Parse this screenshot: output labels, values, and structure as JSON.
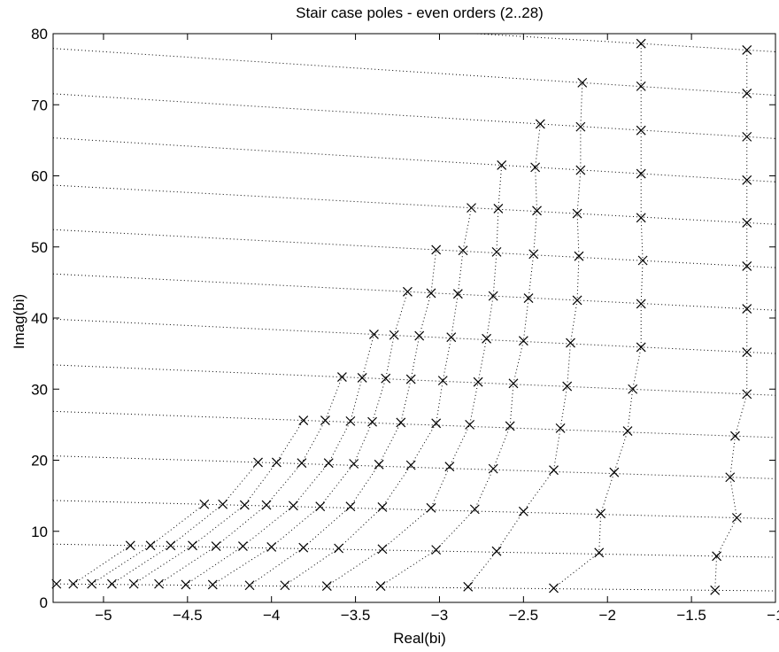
{
  "chart_data": {
    "type": "scatter",
    "title": "Stair case poles - even orders (2..28)",
    "xlabel": "Real(bi)",
    "ylabel": "Imag(bi)",
    "xlim": [
      -5.3,
      -1
    ],
    "ylim": [
      0,
      80
    ],
    "x_ticks": [
      -5,
      -4.5,
      -4,
      -3.5,
      -3,
      -2.5,
      -2,
      -1.5,
      -1
    ],
    "y_ticks": [
      0,
      10,
      20,
      30,
      40,
      50,
      60,
      70,
      80
    ],
    "x_tick_labels": [
      "−5",
      "−4.5",
      "−4",
      "−3.5",
      "−3",
      "−2.5",
      "−2",
      "−1.5",
      "−1"
    ],
    "y_tick_labels": [
      "0",
      "10",
      "20",
      "30",
      "40",
      "50",
      "60",
      "70",
      "80"
    ],
    "grid": false,
    "marker": "x",
    "marker_color": "#000000",
    "guide_line_style": "dotted",
    "series": [
      {
        "name": "",
        "points": [
          [
            -5.28,
            2.6
          ],
          [
            -5.18,
            2.6
          ],
          [
            -5.07,
            2.6
          ],
          [
            -4.95,
            2.6
          ],
          [
            -4.82,
            2.6
          ],
          [
            -4.67,
            2.6
          ],
          [
            -4.51,
            2.5
          ],
          [
            -4.35,
            2.5
          ],
          [
            -4.13,
            2.4
          ],
          [
            -3.92,
            2.4
          ],
          [
            -3.67,
            2.3
          ],
          [
            -3.35,
            2.3
          ],
          [
            -2.83,
            2.2
          ],
          [
            -2.32,
            2.0
          ],
          [
            -1.36,
            1.7
          ]
        ]
      },
      {
        "name": "",
        "points": [
          [
            -4.84,
            8.0
          ],
          [
            -4.72,
            8.0
          ],
          [
            -4.6,
            8.0
          ],
          [
            -4.47,
            8.0
          ],
          [
            -4.33,
            7.9
          ],
          [
            -4.17,
            7.9
          ],
          [
            -4.0,
            7.8
          ],
          [
            -3.81,
            7.7
          ],
          [
            -3.6,
            7.6
          ],
          [
            -3.34,
            7.5
          ],
          [
            -3.02,
            7.4
          ],
          [
            -2.66,
            7.2
          ],
          [
            -2.05,
            7.0
          ],
          [
            -1.35,
            6.5
          ]
        ]
      },
      {
        "name": "",
        "points": [
          [
            -4.4,
            13.8
          ],
          [
            -4.29,
            13.8
          ],
          [
            -4.16,
            13.7
          ],
          [
            -4.03,
            13.7
          ],
          [
            -3.87,
            13.6
          ],
          [
            -3.71,
            13.5
          ],
          [
            -3.53,
            13.5
          ],
          [
            -3.34,
            13.4
          ],
          [
            -3.05,
            13.3
          ],
          [
            -2.79,
            13.1
          ],
          [
            -2.5,
            12.8
          ],
          [
            -2.04,
            12.5
          ],
          [
            -1.23,
            11.9
          ]
        ]
      },
      {
        "name": "",
        "points": [
          [
            -4.08,
            19.7
          ],
          [
            -3.97,
            19.7
          ],
          [
            -3.82,
            19.6
          ],
          [
            -3.66,
            19.6
          ],
          [
            -3.51,
            19.5
          ],
          [
            -3.36,
            19.4
          ],
          [
            -3.17,
            19.3
          ],
          [
            -2.94,
            19.1
          ],
          [
            -2.68,
            18.8
          ],
          [
            -2.32,
            18.6
          ],
          [
            -1.96,
            18.3
          ],
          [
            -1.27,
            17.6
          ]
        ]
      },
      {
        "name": "",
        "points": [
          [
            -3.81,
            25.6
          ],
          [
            -3.68,
            25.6
          ],
          [
            -3.53,
            25.5
          ],
          [
            -3.4,
            25.4
          ],
          [
            -3.23,
            25.3
          ],
          [
            -3.02,
            25.2
          ],
          [
            -2.82,
            25.0
          ],
          [
            -2.58,
            24.8
          ],
          [
            -2.28,
            24.5
          ],
          [
            -1.88,
            24.1
          ],
          [
            -1.24,
            23.4
          ]
        ]
      },
      {
        "name": "",
        "points": [
          [
            -3.58,
            31.7
          ],
          [
            -3.46,
            31.6
          ],
          [
            -3.32,
            31.5
          ],
          [
            -3.17,
            31.4
          ],
          [
            -2.98,
            31.2
          ],
          [
            -2.77,
            31.0
          ],
          [
            -2.56,
            30.8
          ],
          [
            -2.24,
            30.4
          ],
          [
            -1.85,
            30.0
          ],
          [
            -1.17,
            29.3
          ]
        ]
      },
      {
        "name": "",
        "points": [
          [
            -3.39,
            37.7
          ],
          [
            -3.27,
            37.6
          ],
          [
            -3.12,
            37.5
          ],
          [
            -2.93,
            37.3
          ],
          [
            -2.72,
            37.1
          ],
          [
            -2.5,
            36.8
          ],
          [
            -2.22,
            36.5
          ],
          [
            -1.8,
            35.9
          ],
          [
            -1.17,
            35.2
          ]
        ]
      },
      {
        "name": "",
        "points": [
          [
            -3.19,
            43.7
          ],
          [
            -3.05,
            43.5
          ],
          [
            -2.89,
            43.4
          ],
          [
            -2.68,
            43.1
          ],
          [
            -2.47,
            42.8
          ],
          [
            -2.18,
            42.5
          ],
          [
            -1.8,
            42.0
          ],
          [
            -1.17,
            41.3
          ]
        ]
      },
      {
        "name": "",
        "points": [
          [
            -3.02,
            49.6
          ],
          [
            -2.86,
            49.5
          ],
          [
            -2.66,
            49.3
          ],
          [
            -2.44,
            49.0
          ],
          [
            -2.17,
            48.7
          ],
          [
            -1.79,
            48.1
          ],
          [
            -1.17,
            47.3
          ]
        ]
      },
      {
        "name": "",
        "points": [
          [
            -2.81,
            55.5
          ],
          [
            -2.65,
            55.4
          ],
          [
            -2.42,
            55.1
          ],
          [
            -2.18,
            54.7
          ],
          [
            -1.8,
            54.1
          ],
          [
            -1.17,
            53.4
          ]
        ]
      },
      {
        "name": "",
        "points": [
          [
            -2.63,
            61.5
          ],
          [
            -2.43,
            61.2
          ],
          [
            -2.16,
            60.8
          ],
          [
            -1.8,
            60.3
          ],
          [
            -1.17,
            59.4
          ]
        ]
      },
      {
        "name": "",
        "points": [
          [
            -2.4,
            67.3
          ],
          [
            -2.16,
            66.9
          ],
          [
            -1.8,
            66.4
          ],
          [
            -1.17,
            65.5
          ]
        ]
      },
      {
        "name": "",
        "points": [
          [
            -2.15,
            73.1
          ],
          [
            -1.8,
            72.6
          ],
          [
            -1.17,
            71.6
          ]
        ]
      },
      {
        "name": "",
        "points": [
          [
            -1.8,
            78.6
          ],
          [
            -1.17,
            77.7
          ]
        ]
      }
    ]
  }
}
